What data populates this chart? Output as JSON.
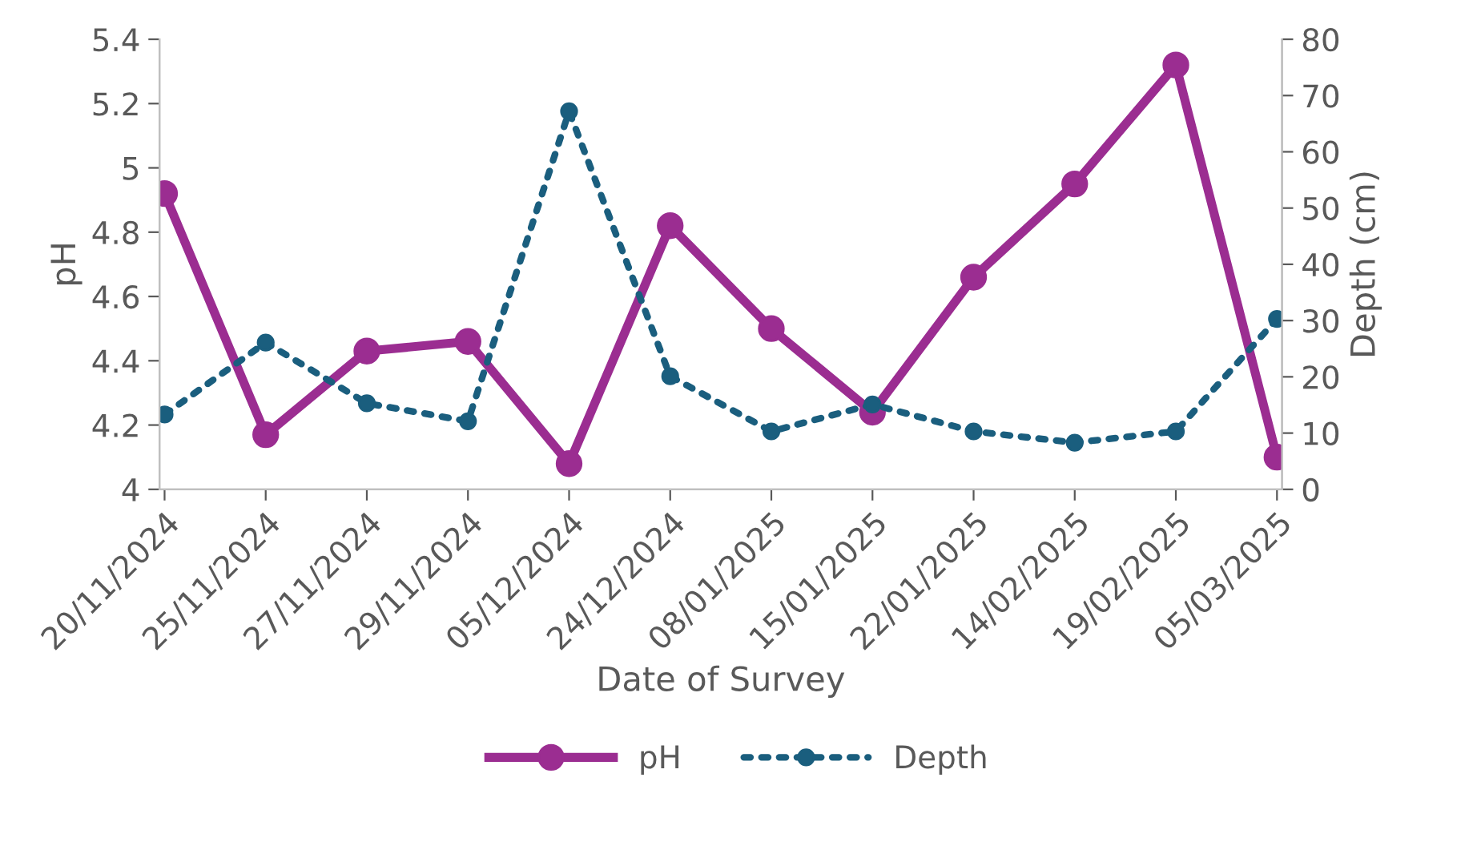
{
  "chart_data": {
    "type": "line",
    "xlabel": "Date of Survey",
    "ylabel": "pH",
    "y2label": "Depth (cm)",
    "categories": [
      "20/11/2024",
      "25/11/2024",
      "27/11/2024",
      "29/11/2024",
      "05/12/2024",
      "24/12/2024",
      "08/01/2025",
      "15/01/2025",
      "22/01/2025",
      "14/02/2025",
      "19/02/2025",
      "05/03/2025"
    ],
    "series": [
      {
        "name": "pH",
        "color": "#9b2d91",
        "line_style": "solid",
        "values": [
          4.92,
          4.17,
          4.43,
          4.46,
          4.08,
          4.82,
          4.5,
          4.24,
          4.66,
          4.95,
          5.32,
          4.1
        ]
      },
      {
        "name": "Depth",
        "color": "#1a5e7e",
        "line_style": "dotted",
        "axis": "y2",
        "values": [
          13.3,
          26.1,
          15.3,
          12.1,
          67.2,
          20.1,
          10.3,
          15.1,
          10.3,
          8.3,
          10.3,
          30.3
        ]
      }
    ],
    "ylim": [
      4,
      5.4
    ],
    "yticks": [
      4,
      4.2,
      4.4,
      4.6,
      4.8,
      5,
      5.2,
      5.4
    ],
    "y2lim": [
      0,
      80
    ],
    "y2ticks": [
      0,
      10,
      20,
      30,
      40,
      50,
      60,
      70,
      80
    ],
    "marker": "circle",
    "grid": false,
    "legend": "bottom"
  }
}
